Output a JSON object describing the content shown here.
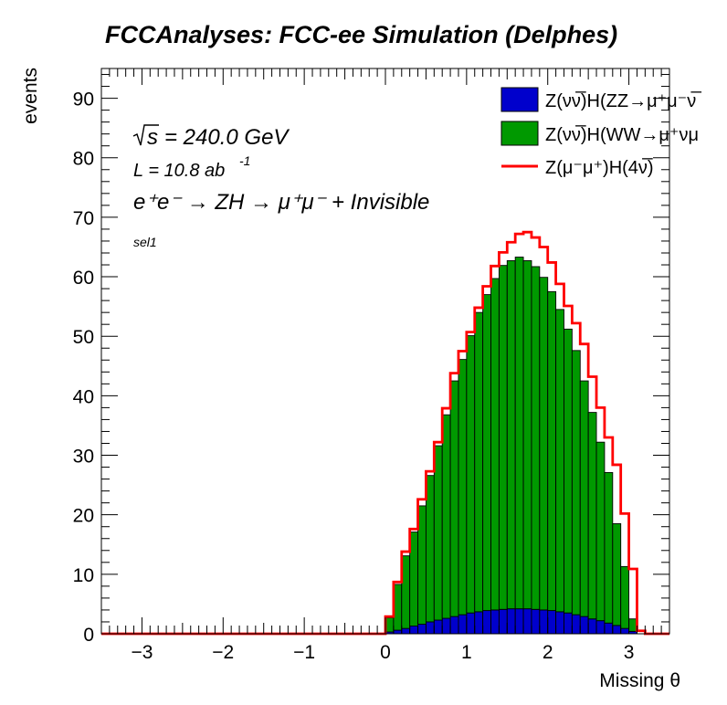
{
  "chart_data": {
    "type": "histogram",
    "title": "FCCAnalyses: FCC-ee Simulation (Delphes)",
    "xlabel": "Missing θ",
    "ylabel": "events",
    "xlim": [
      -3.5,
      3.5
    ],
    "ylim": [
      0,
      95
    ],
    "x_ticks": [
      "−3",
      "−2",
      "−1",
      "0",
      "1",
      "2",
      "3"
    ],
    "y_ticks": [
      "0",
      "10",
      "20",
      "30",
      "40",
      "50",
      "60",
      "70",
      "80",
      "90"
    ],
    "annotations": {
      "sqrt_s": "= 240.0 GeV",
      "lumi": "L = 10.8 ab",
      "lumi_exp": "-1",
      "process": "e⁺e⁻ → ZH → μ⁺μ⁻ + Invisible",
      "selection": "sel1"
    },
    "bin_edges_start": 0.0,
    "bin_width": 0.1,
    "stack": [
      {
        "name": "Z(νν̅)H(ZZ→μ⁺μ⁻ν̅",
        "color": "#0000cc",
        "values": [
          0.3,
          0.6,
          0.9,
          1.3,
          1.6,
          2.0,
          2.3,
          2.6,
          2.9,
          3.2,
          3.5,
          3.7,
          3.9,
          4.0,
          4.1,
          4.2,
          4.2,
          4.2,
          4.1,
          4.0,
          3.9,
          3.7,
          3.5,
          3.2,
          2.9,
          2.5,
          2.2,
          1.8,
          1.4,
          0.9,
          0.4
        ]
      },
      {
        "name": "Z(νν̅)H(WW→μ⁺νμ",
        "color": "#009900",
        "values": [
          2.4,
          7.7,
          12.2,
          15.8,
          19.9,
          24.6,
          29.3,
          34.2,
          39.6,
          42.9,
          46.6,
          50.3,
          53.1,
          55.7,
          57.8,
          58.5,
          59.1,
          58.5,
          57.6,
          55.9,
          53.6,
          50.8,
          47.7,
          44.4,
          39.6,
          34.7,
          30.0,
          25.3,
          17.1,
          10.4,
          2.1
        ]
      }
    ],
    "overlay": {
      "name": "Z(μ⁻μ⁺)H(4ν̅)",
      "color": "#ff0000",
      "values": [
        0.0,
        2.9,
        8.7,
        13.8,
        17.6,
        22.6,
        27.3,
        32.2,
        37.9,
        43.8,
        47.5,
        50.7,
        54.8,
        58.4,
        61.8,
        64.1,
        65.8,
        67.2,
        67.5,
        66.6,
        65.0,
        62.4,
        58.8,
        55.1,
        52.2,
        48.7,
        43.2,
        38.0,
        33.0,
        28.4,
        20.2,
        10.9,
        0.5,
        0.0
      ]
    },
    "overlay_start": -0.1,
    "legend_position": "top-right",
    "grid": false
  }
}
